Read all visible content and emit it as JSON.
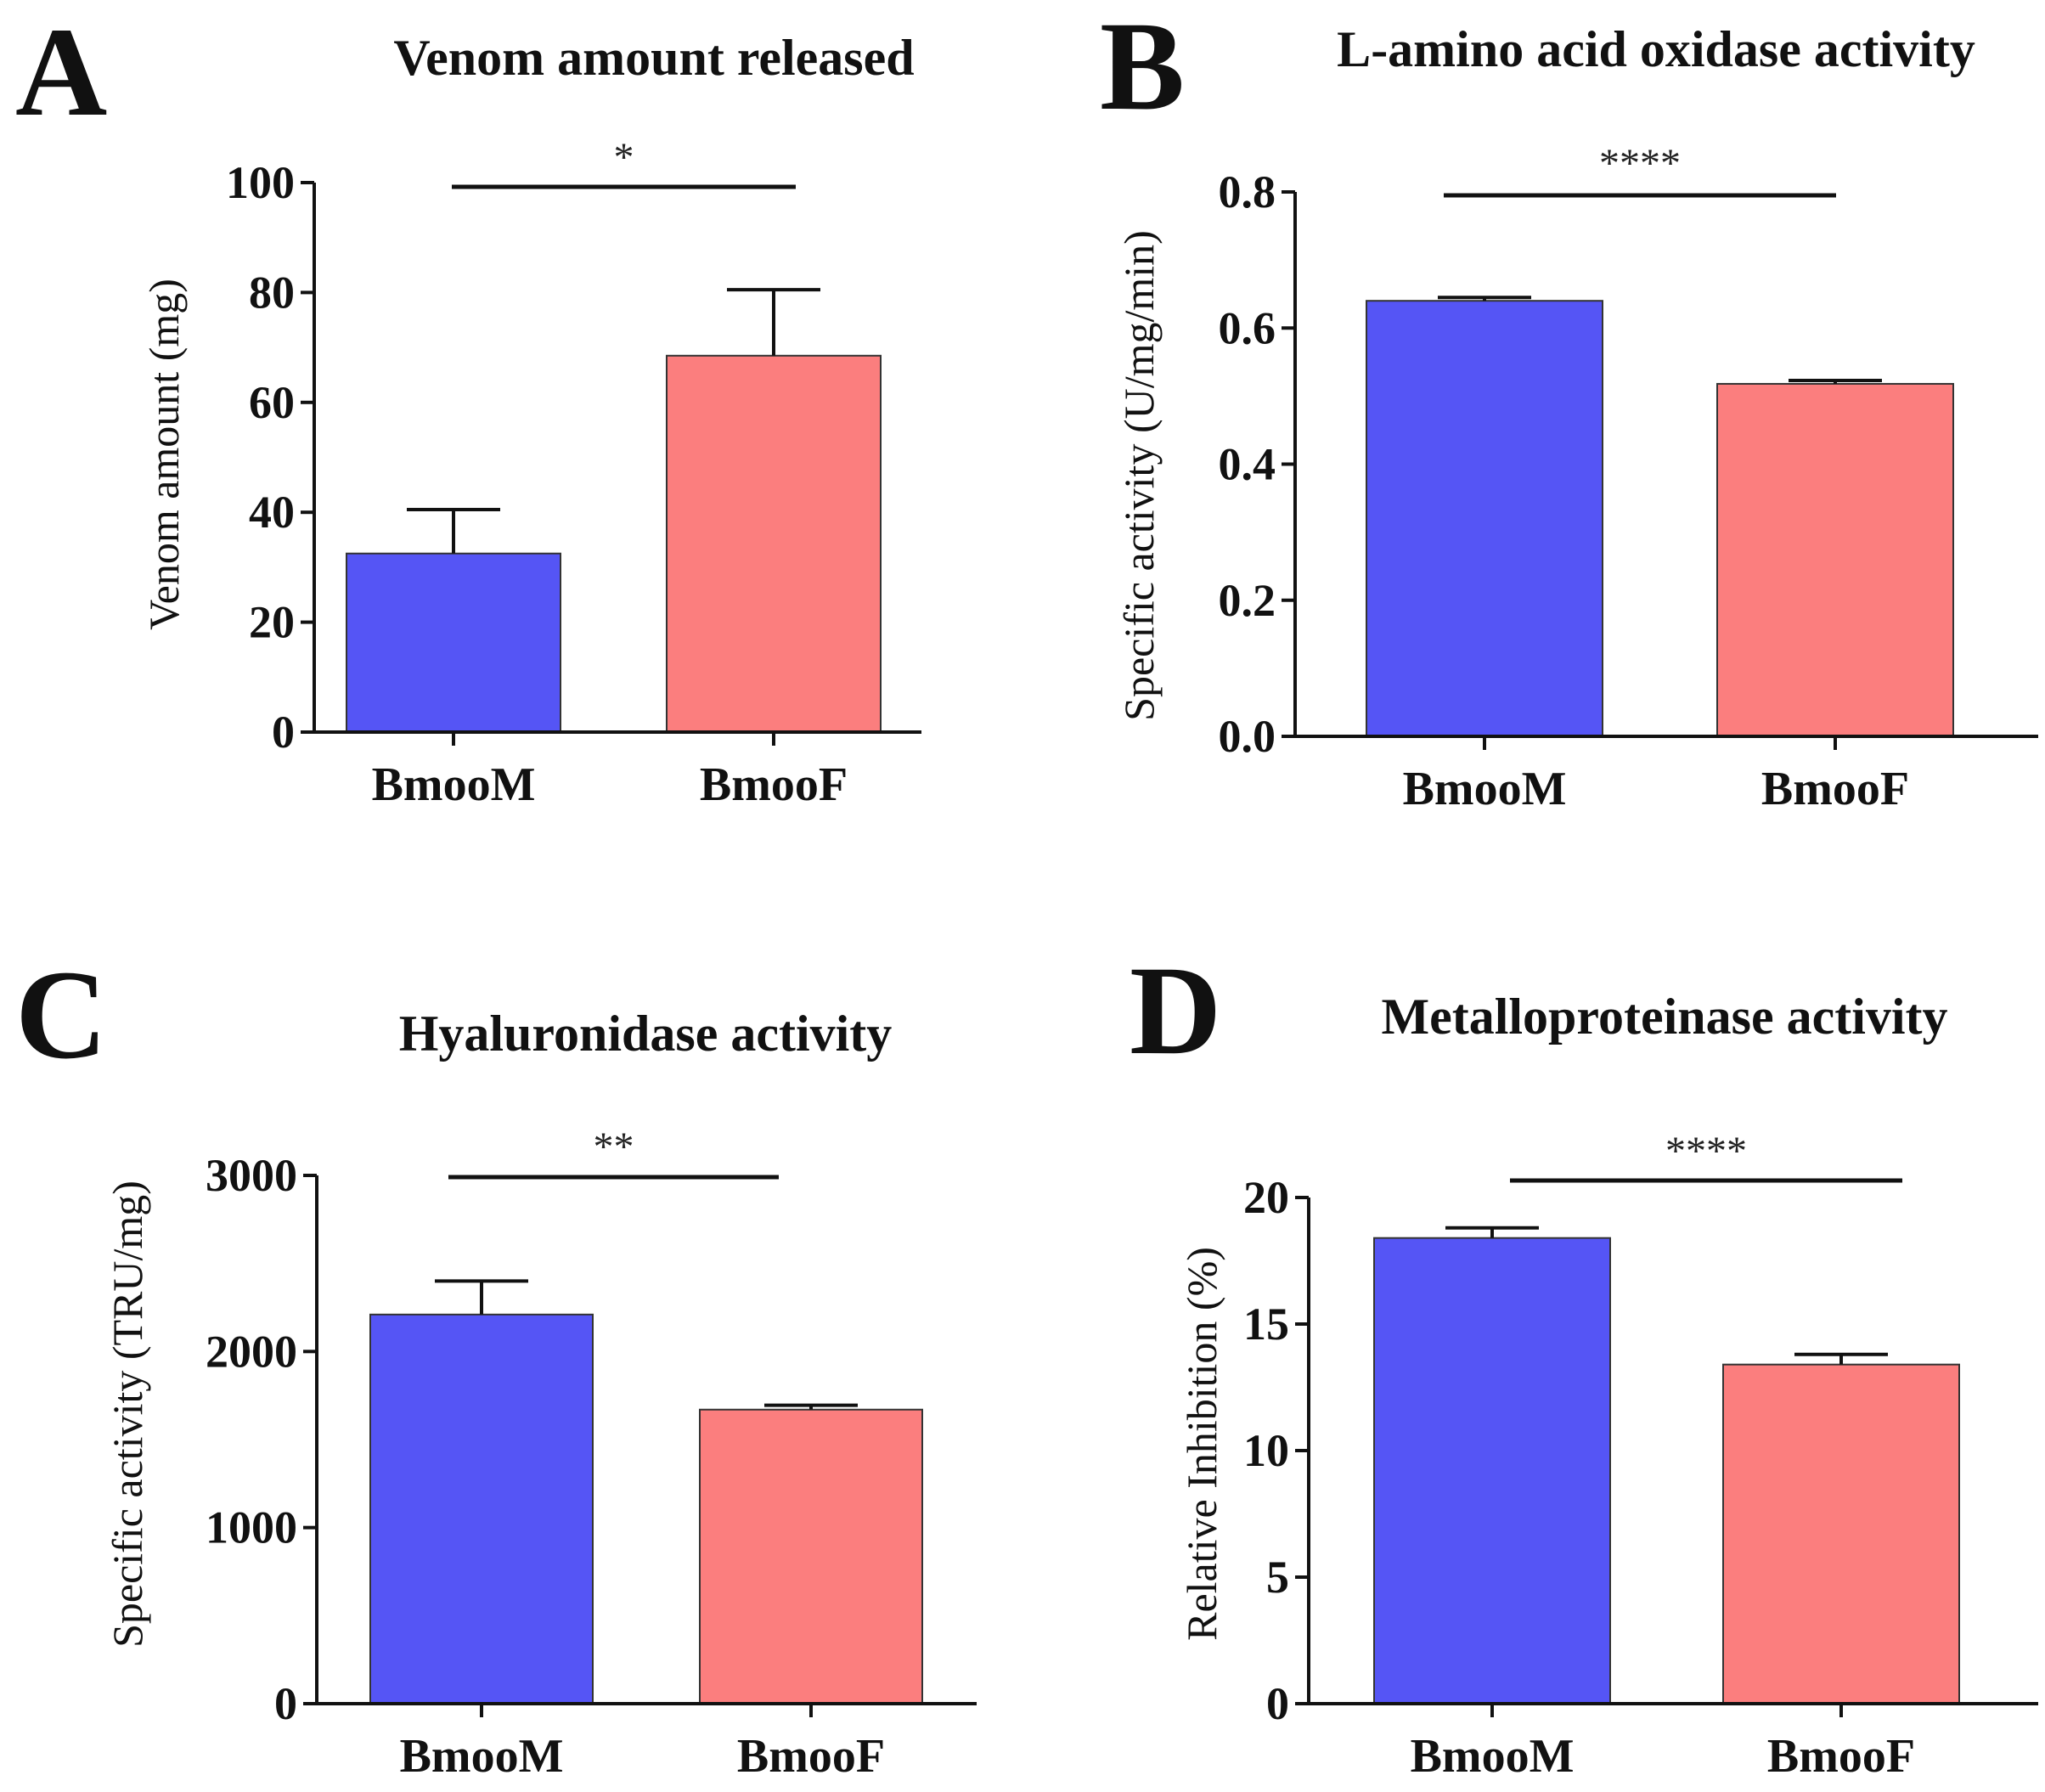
{
  "chart_data": [
    {
      "type": "bar",
      "panel_label": "A",
      "title": "Venom amount released",
      "ylabel": "Venom amount (mg)",
      "xlabel": "",
      "categories": [
        "BmooM",
        "BmooF"
      ],
      "values": [
        32.5,
        68.5
      ],
      "errors": [
        8,
        12
      ],
      "colors": [
        "#5555f5",
        "#fb7e7e"
      ],
      "ylim": [
        0,
        100
      ],
      "yticks": [
        0,
        20,
        40,
        60,
        80,
        100
      ],
      "ytick_labels": [
        "0",
        "20",
        "40",
        "60",
        "80",
        "100"
      ],
      "significance": "*"
    },
    {
      "type": "bar",
      "panel_label": "B",
      "title": "L-amino acid oxidase activity",
      "ylabel": "Specific activity (U/mg/min)",
      "xlabel": "",
      "categories": [
        "BmooM",
        "BmooF"
      ],
      "values": [
        0.64,
        0.518
      ],
      "errors": [
        0.005,
        0.005
      ],
      "colors": [
        "#5555f5",
        "#fb7e7e"
      ],
      "ylim": [
        0,
        0.8
      ],
      "yticks": [
        0,
        0.2,
        0.4,
        0.6,
        0.8
      ],
      "ytick_labels": [
        "0.0",
        "0.2",
        "0.4",
        "0.6",
        "0.8"
      ],
      "significance": "****"
    },
    {
      "type": "bar",
      "panel_label": "C",
      "title": "Hyaluronidase activity",
      "ylabel": "Specific activity (TRU/mg)",
      "xlabel": "",
      "categories": [
        "BmooM",
        "BmooF"
      ],
      "values": [
        2210,
        1670
      ],
      "errors": [
        190,
        25
      ],
      "colors": [
        "#5555f5",
        "#fb7e7e"
      ],
      "ylim": [
        0,
        3000
      ],
      "yticks": [
        0,
        1000,
        2000,
        3000
      ],
      "ytick_labels": [
        "0",
        "1000",
        "2000",
        "3000"
      ],
      "significance": "**"
    },
    {
      "type": "bar",
      "panel_label": "D",
      "title": "Metalloproteinase activity",
      "ylabel": "Relative Inhibition (%)",
      "xlabel": "",
      "categories": [
        "BmooM",
        "BmooF"
      ],
      "values": [
        18.4,
        13.4
      ],
      "errors": [
        0.4,
        0.4
      ],
      "colors": [
        "#5555f5",
        "#fb7e7e"
      ],
      "ylim": [
        0,
        20
      ],
      "yticks": [
        0,
        5,
        10,
        15,
        20
      ],
      "ytick_labels": [
        "0",
        "5",
        "10",
        "15",
        "20"
      ],
      "significance": "****"
    }
  ]
}
